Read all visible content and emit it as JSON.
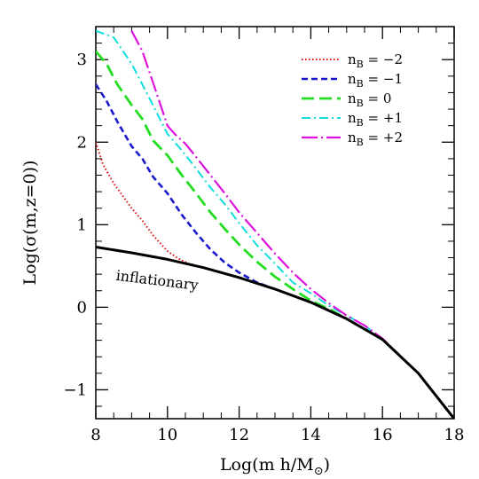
{
  "chart_data": {
    "type": "line",
    "xlabel": "Log(m h/M",
    "xlabel_sub": "⊙",
    "xlabel_close": ")",
    "ylabel": "Log(σ(m,z=0))",
    "xlim": [
      8,
      18
    ],
    "ylim": [
      -1.35,
      3.4
    ],
    "xticks": [
      8,
      10,
      12,
      14,
      16,
      18
    ],
    "yticks": [
      -1,
      0,
      1,
      2,
      3
    ],
    "ytick_labels": [
      "−1",
      "0",
      "1",
      "2",
      "3"
    ],
    "grid": false,
    "legend_position": "top-right",
    "annotation": "inflationary",
    "series": [
      {
        "name": "inflationary",
        "color": "#000000",
        "dash": "solid",
        "x": [
          8,
          9,
          10,
          11,
          12,
          13,
          14,
          15,
          16,
          17,
          18
        ],
        "y": [
          0.73,
          0.66,
          0.58,
          0.48,
          0.36,
          0.22,
          0.06,
          -0.14,
          -0.39,
          -0.8,
          -1.35
        ]
      },
      {
        "name": "n",
        "sub": "B",
        "value": "−2",
        "color": "#dd1111",
        "dash": "dotted",
        "x": [
          8,
          8.2,
          8.5,
          8.8,
          9,
          9.3,
          9.6,
          10,
          10.3,
          10.6,
          11,
          11.5,
          12,
          13,
          14,
          15,
          16,
          17,
          18
        ],
        "y": [
          2.0,
          1.73,
          1.5,
          1.32,
          1.2,
          1.05,
          0.87,
          0.68,
          0.59,
          0.53,
          0.48,
          0.42,
          0.36,
          0.22,
          0.06,
          -0.14,
          -0.39,
          -0.8,
          -1.35
        ]
      },
      {
        "name": "n",
        "sub": "B",
        "value": "−1",
        "color": "#1a1acc",
        "dash": "dashed-short",
        "x": [
          8,
          8.3,
          8.6,
          9,
          9.3,
          9.6,
          10,
          10.4,
          10.8,
          11.2,
          11.6,
          12,
          12.5,
          13,
          14,
          15,
          16,
          17,
          18
        ],
        "y": [
          2.7,
          2.5,
          2.25,
          1.95,
          1.8,
          1.58,
          1.38,
          1.12,
          0.9,
          0.7,
          0.54,
          0.42,
          0.3,
          0.22,
          0.06,
          -0.14,
          -0.39,
          -0.8,
          -1.35
        ]
      },
      {
        "name": "n",
        "sub": "B",
        "value": "0",
        "color": "#22dd22",
        "dash": "dashed-long",
        "x": [
          8,
          8.3,
          8.6,
          9,
          9.3,
          9.6,
          10,
          10.4,
          10.8,
          11.2,
          11.6,
          12,
          12.5,
          13,
          13.5,
          14,
          14.5,
          15,
          16,
          17,
          18
        ],
        "y": [
          3.1,
          2.95,
          2.7,
          2.45,
          2.28,
          2.02,
          1.84,
          1.6,
          1.38,
          1.15,
          0.95,
          0.76,
          0.55,
          0.37,
          0.22,
          0.08,
          -0.02,
          -0.14,
          -0.39,
          -0.8,
          -1.35
        ]
      },
      {
        "name": "n",
        "sub": "B",
        "value": "+1",
        "color": "#11dddd",
        "dash": "dash-dot",
        "x": [
          8,
          8.5,
          9,
          9.5,
          10,
          10.4,
          10.8,
          11.2,
          11.6,
          12,
          12.5,
          13,
          13.5,
          14,
          14.5,
          15,
          15.5,
          16,
          17,
          18
        ],
        "y": [
          3.35,
          3.27,
          2.95,
          2.53,
          2.1,
          1.9,
          1.68,
          1.45,
          1.25,
          1.02,
          0.75,
          0.53,
          0.3,
          0.17,
          0.02,
          -0.1,
          -0.22,
          -0.39,
          -0.8,
          -1.35
        ]
      },
      {
        "name": "n",
        "sub": "B",
        "value": "+2",
        "color": "#dd11dd",
        "dash": "long-dash-dot",
        "x": [
          9,
          9.3,
          9.6,
          10,
          10.2,
          10.5,
          10.8,
          11.2,
          11.6,
          12,
          12.5,
          13,
          13.5,
          14,
          14.5,
          15,
          15.5,
          16,
          17,
          18
        ],
        "y": [
          3.35,
          3.1,
          2.72,
          2.2,
          2.1,
          1.98,
          1.82,
          1.6,
          1.38,
          1.15,
          0.9,
          0.65,
          0.42,
          0.22,
          0.05,
          -0.1,
          -0.22,
          -0.38,
          -0.8,
          -1.35
        ]
      }
    ]
  }
}
